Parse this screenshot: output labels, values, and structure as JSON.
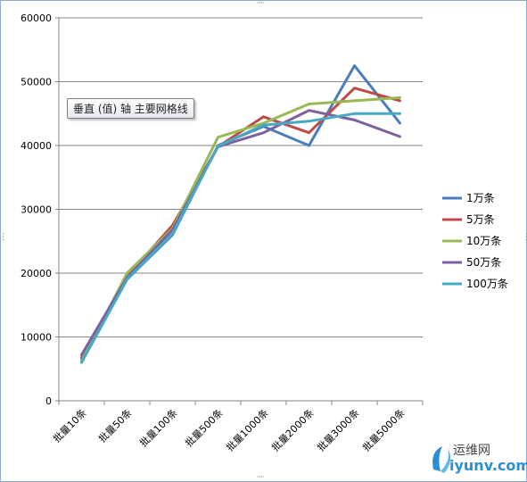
{
  "chart_data": {
    "type": "line",
    "title": "",
    "xlabel": "",
    "ylabel": "",
    "ylim": [
      0,
      60000
    ],
    "yticks": [
      0,
      10000,
      20000,
      30000,
      40000,
      50000,
      60000
    ],
    "grid": true,
    "legend_position": "right",
    "categories": [
      "批量10条",
      "批量50条",
      "批量100条",
      "批量500条",
      "批量1000条",
      "批量2000条",
      "批量3000条",
      "批量5000条"
    ],
    "series": [
      {
        "name": "1万条",
        "color": "#4a7ebb",
        "values": [
          6500,
          19000,
          26000,
          40000,
          43000,
          40000,
          52500,
          43500
        ]
      },
      {
        "name": "5万条",
        "color": "#be4b48",
        "values": [
          6800,
          19500,
          27500,
          39800,
          44500,
          42000,
          49000,
          47000
        ]
      },
      {
        "name": "10万条",
        "color": "#98b954",
        "values": [
          6200,
          20000,
          27000,
          41300,
          43500,
          46500,
          47000,
          47500
        ]
      },
      {
        "name": "50万条",
        "color": "#7d60a0",
        "values": [
          7200,
          19300,
          26800,
          39800,
          42000,
          45500,
          44000,
          41400
        ]
      },
      {
        "name": "100万条",
        "color": "#46aac5",
        "values": [
          6000,
          19000,
          26200,
          39900,
          43200,
          43800,
          45000,
          45000
        ]
      }
    ]
  },
  "tooltip": {
    "text": "垂直 (值) 轴 主要网格线"
  },
  "watermark": {
    "line1": "运维网",
    "line2": "iyunv.com"
  }
}
